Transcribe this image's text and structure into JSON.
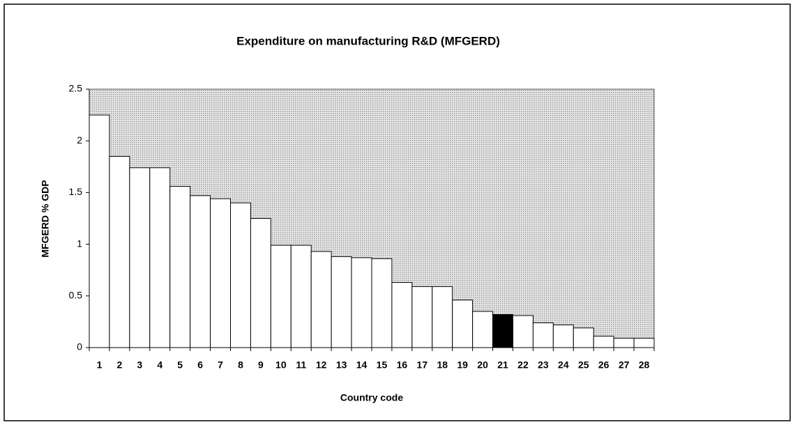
{
  "chart_data": {
    "type": "bar",
    "title": "Expenditure on manufacturing R&D (MFGERD)",
    "x_label": "Country code",
    "y_label": "MFGERD % GDP",
    "categories": [
      "1",
      "2",
      "3",
      "4",
      "5",
      "6",
      "7",
      "8",
      "9",
      "10",
      "11",
      "12",
      "13",
      "14",
      "15",
      "16",
      "17",
      "18",
      "19",
      "20",
      "21",
      "22",
      "23",
      "24",
      "25",
      "26",
      "27",
      "28"
    ],
    "values": [
      2.25,
      1.85,
      1.74,
      1.74,
      1.56,
      1.47,
      1.44,
      1.4,
      1.25,
      0.99,
      0.99,
      0.93,
      0.88,
      0.87,
      0.86,
      0.63,
      0.59,
      0.59,
      0.46,
      0.35,
      0.32,
      0.31,
      0.24,
      0.22,
      0.19,
      0.11,
      0.09,
      0.09
    ],
    "colors": [
      "#ffffff",
      "#ffffff",
      "#ffffff",
      "#ffffff",
      "#ffffff",
      "#ffffff",
      "#ffffff",
      "#ffffff",
      "#ffffff",
      "#ffffff",
      "#ffffff",
      "#ffffff",
      "#ffffff",
      "#ffffff",
      "#ffffff",
      "#ffffff",
      "#ffffff",
      "#ffffff",
      "#ffffff",
      "#ffffff",
      "#000000",
      "#ffffff",
      "#ffffff",
      "#ffffff",
      "#ffffff",
      "#ffffff",
      "#ffffff",
      "#ffffff"
    ],
    "plot_background": "#cfcfcf",
    "ylim": [
      0,
      2.5
    ],
    "yticks": [
      0,
      0.5,
      1,
      1.5,
      2,
      2.5
    ],
    "grid": false
  }
}
